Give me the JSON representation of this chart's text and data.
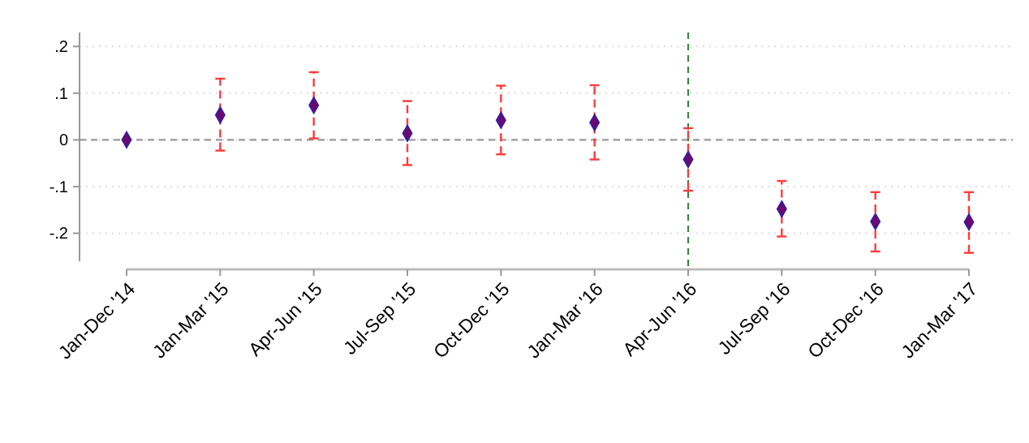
{
  "chart_data": {
    "type": "scatter",
    "categories": [
      "Jan-Dec '14",
      "Jan-Mar '15",
      "Apr-Jun '15",
      "Jul-Sep '15",
      "Oct-Dec '15",
      "Jan-Mar '16",
      "Apr-Jun '16",
      "Jul-Sep '16",
      "Oct-Dec '16",
      "Jan-Mar '17"
    ],
    "series": [
      {
        "color": "#6a0a6e",
        "values": [
          0,
          0.053,
          0.074,
          0.014,
          0.042,
          0.037,
          -0.042,
          -0.148,
          -0.175,
          -0.176
        ],
        "errors": [
          null,
          [
            -0.023,
            0.131
          ],
          [
            0.003,
            0.145
          ],
          [
            -0.054,
            0.083
          ],
          [
            -0.031,
            0.116
          ],
          [
            -0.042,
            0.117
          ],
          [
            -0.109,
            0.025
          ],
          [
            -0.207,
            -0.088
          ],
          [
            -0.239,
            -0.112
          ],
          [
            -0.242,
            -0.112
          ]
        ]
      }
    ],
    "ylim": [
      -0.26,
      0.23
    ],
    "yticks": [
      {
        "value": -0.2,
        "label": "-.2"
      },
      {
        "value": -0.1,
        "label": "-.1"
      },
      {
        "value": 0,
        "label": "0"
      },
      {
        "value": 0.1,
        "label": ".1"
      },
      {
        "value": 0.2,
        "label": ".2"
      }
    ],
    "grid": "y",
    "marker": "diamond",
    "ref_lines": [
      {
        "axis": "y",
        "value": 0,
        "color": "#999999",
        "line_style": "dashed"
      },
      {
        "axis": "x",
        "value": "Apr-Jun '16",
        "color": "#2e8b2e",
        "line_style": "dashed"
      }
    ]
  }
}
